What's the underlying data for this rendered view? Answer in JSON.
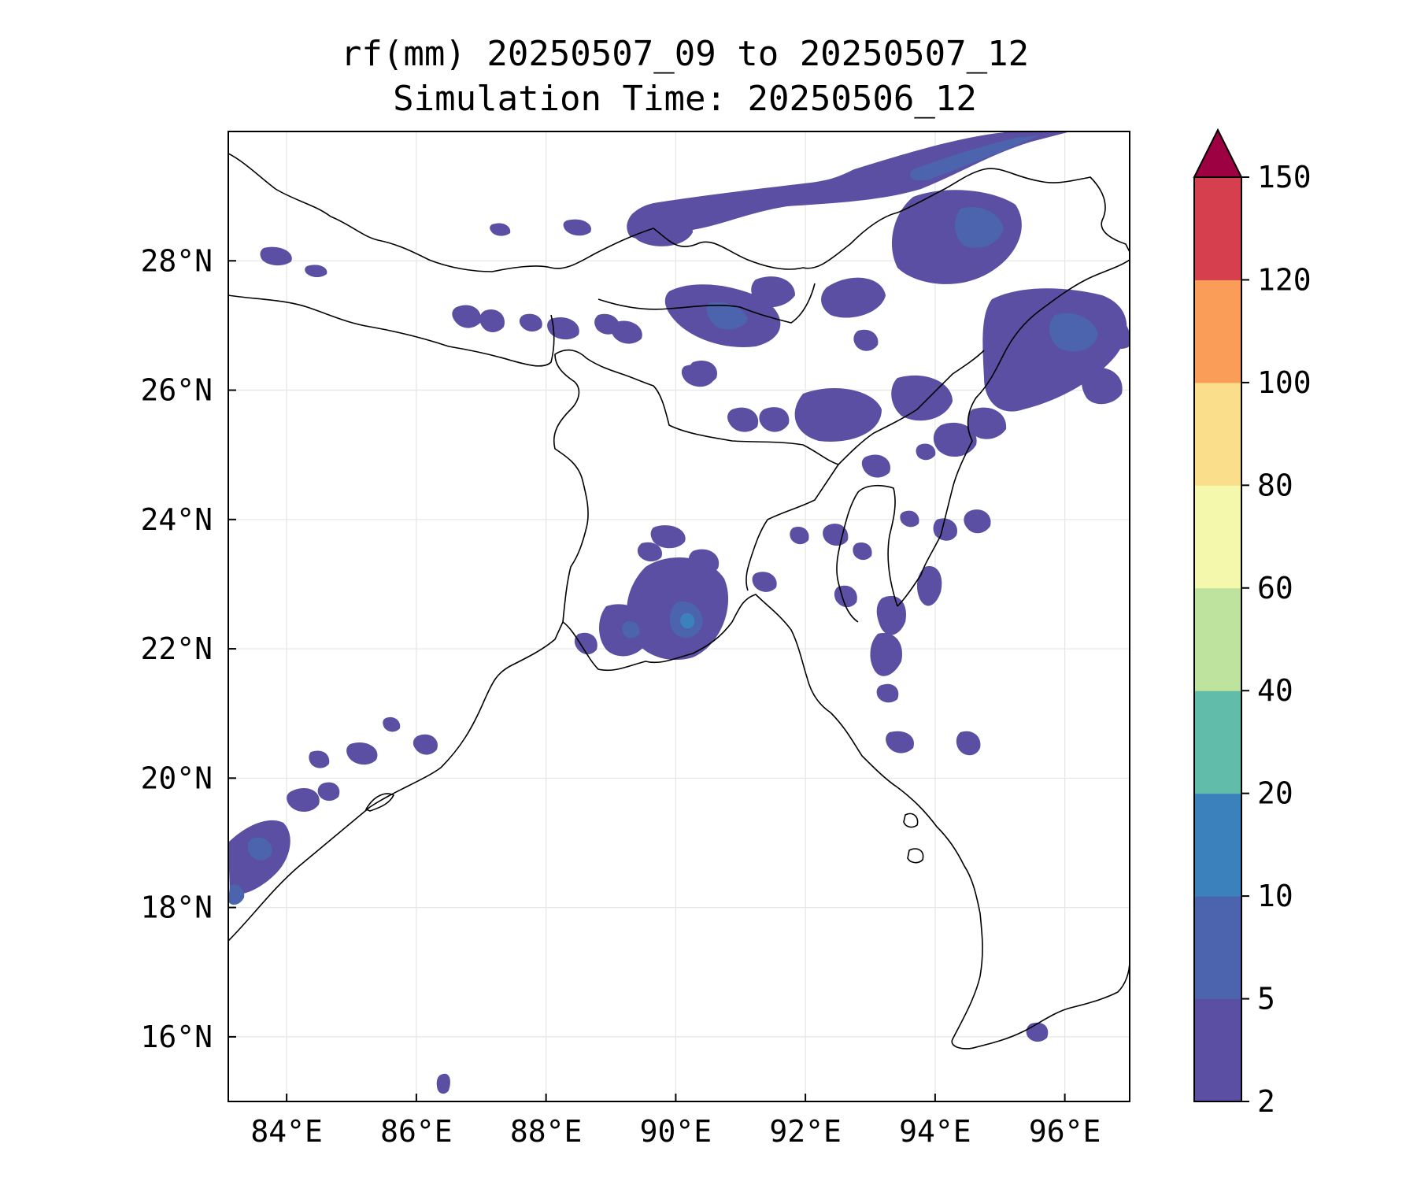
{
  "title": {
    "line1": "rf(mm) 20250507_09 to 20250507_12",
    "line2": "Simulation Time: 20250506_12"
  },
  "map": {
    "lon_range": [
      83.1,
      97.0
    ],
    "lat_range": [
      15.0,
      30.0
    ],
    "xticks": [
      84,
      86,
      88,
      90,
      92,
      94,
      96
    ],
    "yticks": [
      16,
      18,
      20,
      22,
      24,
      26,
      28
    ],
    "xtick_labels": [
      "84°E",
      "86°E",
      "88°E",
      "90°E",
      "92°E",
      "94°E",
      "96°E"
    ],
    "ytick_labels": [
      "16°N",
      "18°N",
      "20°N",
      "22°N",
      "24°N",
      "26°N",
      "28°N"
    ],
    "gridlines": true
  },
  "colorbar": {
    "levels": [
      "2",
      "5",
      "10",
      "20",
      "40",
      "60",
      "80",
      "100",
      "120",
      "150"
    ],
    "colors": [
      "#5a4fa2",
      "#4c64ad",
      "#3b82bd",
      "#62bcaa",
      "#bde39e",
      "#f3f8ac",
      "#fbde8b",
      "#f99d59",
      "#d63f4e",
      "#9e0142"
    ],
    "extend": "max"
  },
  "chart_data": {
    "type": "heatmap",
    "variable": "rf(mm)",
    "units": "mm",
    "rain_areas": [
      {
        "lon": 95.3,
        "lat": 29.6,
        "value": 5
      },
      {
        "lon": 94.3,
        "lat": 28.0,
        "value": 10
      },
      {
        "lon": 91.2,
        "lat": 28.4,
        "value": 5
      },
      {
        "lon": 90.8,
        "lat": 27.3,
        "value": 10
      },
      {
        "lon": 92.9,
        "lat": 27.2,
        "value": 5
      },
      {
        "lon": 95.7,
        "lat": 27.4,
        "value": 10
      },
      {
        "lon": 96.3,
        "lat": 26.8,
        "value": 10
      },
      {
        "lon": 94.4,
        "lat": 26.2,
        "value": 5
      },
      {
        "lon": 92.7,
        "lat": 25.8,
        "value": 5
      },
      {
        "lon": 90.2,
        "lat": 22.4,
        "value": 10
      },
      {
        "lon": 89.4,
        "lat": 22.2,
        "value": 5
      },
      {
        "lon": 89.7,
        "lat": 23.5,
        "value": 5
      },
      {
        "lon": 93.4,
        "lat": 21.5,
        "value": 5
      },
      {
        "lon": 94.1,
        "lat": 23.2,
        "value": 5
      },
      {
        "lon": 83.6,
        "lat": 18.9,
        "value": 10
      },
      {
        "lon": 86.4,
        "lat": 20.6,
        "value": 5
      },
      {
        "lon": 87.0,
        "lat": 26.8,
        "value": 5
      }
    ]
  }
}
